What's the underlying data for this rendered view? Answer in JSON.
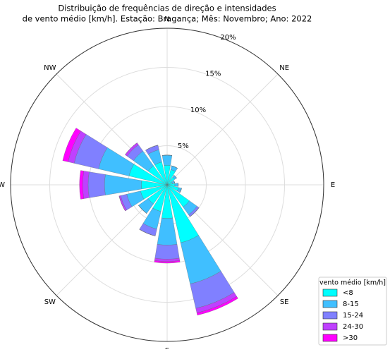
{
  "chart_data": {
    "type": "windrose",
    "title": "Distribuição de frequências de direção e intensidades",
    "subtitle": "de vento médio [km/h]. Estação: Bragança; Mês: Novembro; Ano: 2022",
    "categories": [
      "N",
      null,
      "NE",
      null,
      "E",
      null,
      "SE",
      null,
      "S",
      null,
      "SW",
      null,
      "W",
      null,
      "NW",
      null
    ],
    "ylim": [
      0,
      20
    ],
    "yticks": [
      {
        "value": 5,
        "label": "5%"
      },
      {
        "value": 10,
        "label": "10%"
      },
      {
        "value": 15,
        "label": "15%"
      },
      {
        "value": 20,
        "label": "20%"
      }
    ],
    "legend_title": "vento médio [km/h]",
    "legend_position": "lower right",
    "series": [
      {
        "name": "<8",
        "color": "#00ffff",
        "values": [
          2.5,
          2,
          1.2,
          0.7,
          1,
          1.5,
          3.5,
          7.6,
          4.3,
          3.5,
          3,
          3.5,
          3.3,
          5,
          3,
          3
        ]
      },
      {
        "name": "8-15",
        "color": "#40bfff",
        "values": [
          1.3,
          0.5,
          0.3,
          0.3,
          0.4,
          0.4,
          1.2,
          5.4,
          3.4,
          2.3,
          1.5,
          1.8,
          4.7,
          4,
          2.3,
          1.6
        ]
      },
      {
        "name": "15-24",
        "color": "#8080ff",
        "values": [
          0,
          0,
          0,
          0,
          0,
          0,
          0.3,
          3.2,
          1.8,
          0.9,
          0,
          0.8,
          2.1,
          3.2,
          1,
          0.6
        ]
      },
      {
        "name": "24-30",
        "color": "#bf40ff",
        "values": [
          0,
          0,
          0,
          0,
          0,
          0,
          0,
          0.6,
          0.3,
          0,
          0,
          0.2,
          0.7,
          0.8,
          0.3,
          0
        ]
      },
      {
        "name": ">30",
        "color": "#ff00ff",
        "values": [
          0,
          0,
          0,
          0,
          0,
          0,
          0,
          0.3,
          0.2,
          0,
          0,
          0,
          0.4,
          0.7,
          0,
          0
        ]
      }
    ]
  }
}
